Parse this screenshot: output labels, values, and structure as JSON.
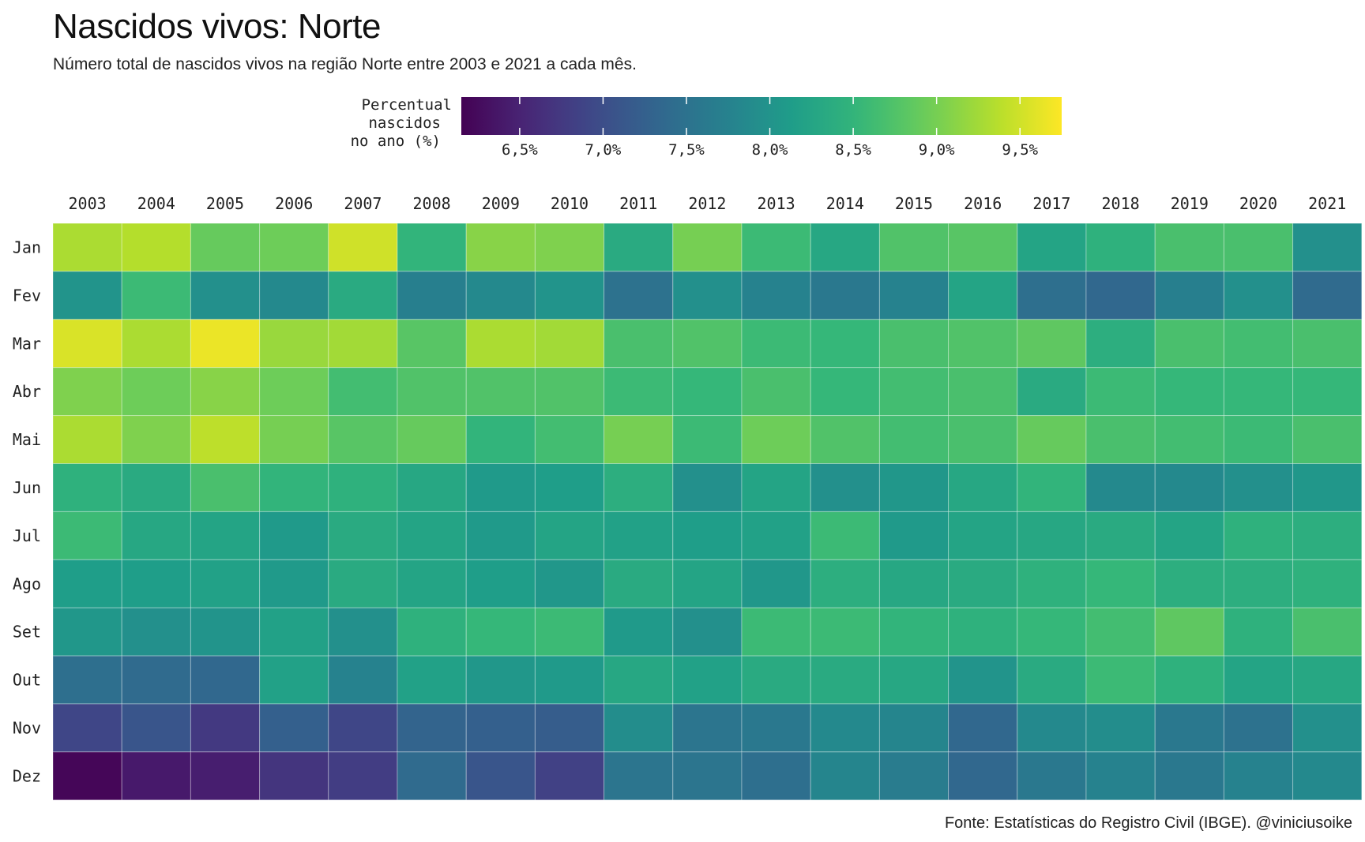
{
  "title": "Nascidos vivos: Norte",
  "subtitle": "Número total de nascidos vivos na região Norte entre 2003 e 2021 a cada mês.",
  "caption": "Fonte: Estatísticas do Registro Civil (IBGE). @viniciusoike",
  "legend": {
    "title_lines": [
      "Percentual",
      "nascidos",
      "no ano (%)"
    ],
    "min": 6.15,
    "max": 9.75,
    "ticks": [
      {
        "value": 6.5,
        "label": "6,5%"
      },
      {
        "value": 7.0,
        "label": "7,0%"
      },
      {
        "value": 7.5,
        "label": "7,5%"
      },
      {
        "value": 8.0,
        "label": "8,0%"
      },
      {
        "value": 8.5,
        "label": "8,5%"
      },
      {
        "value": 9.0,
        "label": "9,0%"
      },
      {
        "value": 9.5,
        "label": "9,5%"
      }
    ],
    "colormap": "viridis"
  },
  "chart_data": {
    "type": "heatmap",
    "title": "Nascidos vivos: Norte",
    "x": [
      "2003",
      "2004",
      "2005",
      "2006",
      "2007",
      "2008",
      "2009",
      "2010",
      "2011",
      "2012",
      "2013",
      "2014",
      "2015",
      "2016",
      "2017",
      "2018",
      "2019",
      "2020",
      "2021"
    ],
    "y": [
      "Jan",
      "Fev",
      "Mar",
      "Abr",
      "Mai",
      "Jun",
      "Jul",
      "Ago",
      "Set",
      "Out",
      "Nov",
      "Dez"
    ],
    "value_unit": "%",
    "color_range": [
      6.15,
      9.75
    ],
    "values": [
      [
        9.3,
        9.35,
        8.9,
        8.95,
        9.5,
        8.5,
        9.1,
        9.05,
        8.35,
        9.0,
        8.6,
        8.3,
        8.75,
        8.8,
        8.25,
        8.45,
        8.7,
        8.7,
        7.95
      ],
      [
        8.0,
        8.6,
        7.95,
        7.85,
        8.35,
        7.7,
        7.85,
        8.0,
        7.5,
        7.95,
        7.75,
        7.6,
        7.75,
        8.25,
        7.45,
        7.35,
        7.7,
        7.95,
        7.4
      ],
      [
        9.55,
        9.3,
        9.65,
        9.2,
        9.25,
        8.8,
        9.3,
        9.25,
        8.7,
        8.75,
        8.6,
        8.55,
        8.7,
        8.75,
        8.85,
        8.4,
        8.7,
        8.65,
        8.7
      ],
      [
        9.05,
        8.95,
        9.1,
        8.95,
        8.65,
        8.75,
        8.75,
        8.75,
        8.6,
        8.55,
        8.7,
        8.55,
        8.65,
        8.7,
        8.35,
        8.6,
        8.55,
        8.55,
        8.55
      ],
      [
        9.3,
        9.05,
        9.4,
        9.0,
        8.8,
        8.9,
        8.5,
        8.65,
        9.0,
        8.6,
        8.95,
        8.75,
        8.65,
        8.7,
        8.9,
        8.7,
        8.65,
        8.6,
        8.7
      ],
      [
        8.45,
        8.35,
        8.7,
        8.5,
        8.45,
        8.3,
        8.1,
        8.15,
        8.4,
        7.95,
        8.25,
        7.95,
        8.05,
        8.3,
        8.5,
        7.85,
        7.85,
        7.95,
        8.05
      ],
      [
        8.6,
        8.3,
        8.25,
        8.1,
        8.35,
        8.25,
        8.1,
        8.25,
        8.2,
        8.15,
        8.2,
        8.6,
        8.1,
        8.25,
        8.3,
        8.35,
        8.25,
        8.45,
        8.4
      ],
      [
        8.15,
        8.15,
        8.2,
        8.1,
        8.35,
        8.25,
        8.15,
        8.05,
        8.35,
        8.25,
        8.05,
        8.4,
        8.3,
        8.35,
        8.45,
        8.55,
        8.4,
        8.4,
        8.45
      ],
      [
        8.05,
        7.95,
        8.0,
        8.2,
        7.95,
        8.45,
        8.55,
        8.6,
        8.1,
        7.95,
        8.6,
        8.6,
        8.5,
        8.45,
        8.55,
        8.65,
        8.85,
        8.45,
        8.7
      ],
      [
        7.45,
        7.4,
        7.35,
        8.2,
        7.75,
        8.2,
        8.05,
        8.1,
        8.3,
        8.2,
        8.35,
        8.35,
        8.3,
        8.0,
        8.35,
        8.6,
        8.45,
        8.25,
        8.3
      ],
      [
        6.9,
        7.1,
        6.75,
        7.25,
        6.9,
        7.3,
        7.25,
        7.2,
        7.9,
        7.55,
        7.6,
        7.85,
        7.8,
        7.35,
        7.85,
        7.9,
        7.6,
        7.5,
        7.95
      ],
      [
        6.2,
        6.4,
        6.45,
        6.7,
        6.8,
        7.4,
        7.1,
        6.85,
        7.55,
        7.55,
        7.45,
        7.8,
        7.65,
        7.35,
        7.6,
        7.75,
        7.6,
        7.75,
        7.85
      ]
    ]
  }
}
